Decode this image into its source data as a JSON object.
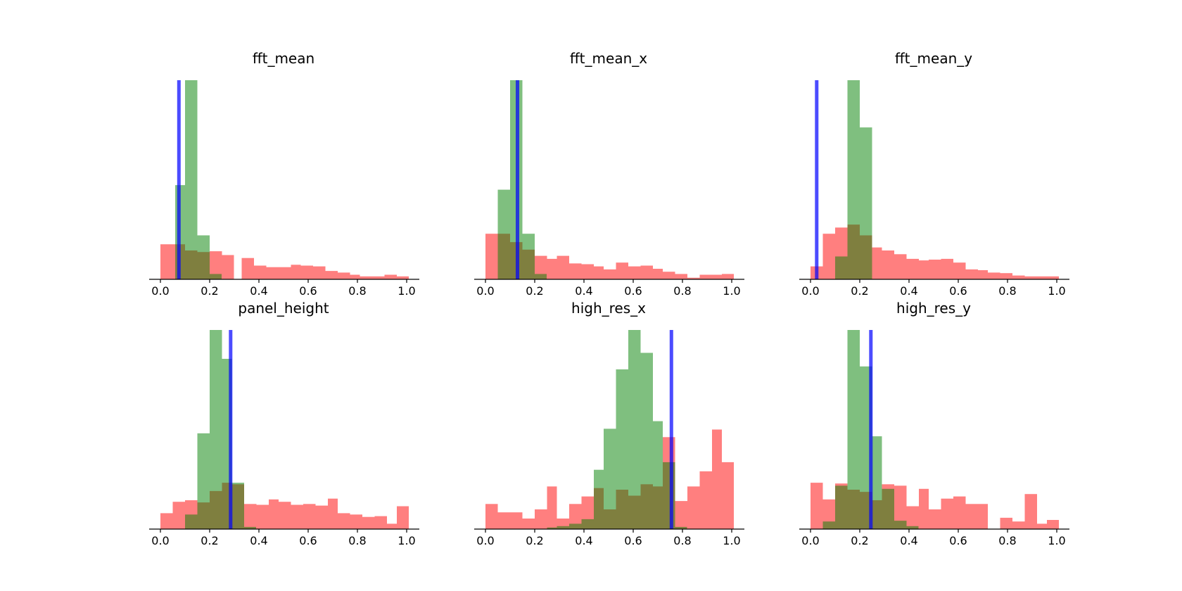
{
  "colors": {
    "red": "#ff0000",
    "green": "#008000",
    "blue": "#0000ff",
    "axis": "#000000"
  },
  "chart_data": [
    {
      "type": "bar",
      "title": "fft_mean",
      "xlim": [
        0,
        1
      ],
      "xticks": [
        "0.0",
        "0.2",
        "0.4",
        "0.6",
        "0.8",
        "1.0"
      ],
      "ylim": [
        0,
        100
      ],
      "show_yaxis": false,
      "series": [
        {
          "color": "red",
          "x": [
            0.0,
            0.06,
            0.1,
            0.15,
            0.2,
            0.25,
            0.33,
            0.38,
            0.43,
            0.48,
            0.53,
            0.57,
            0.62,
            0.67,
            0.72,
            0.77,
            0.81,
            0.86,
            0.91,
            0.96
          ],
          "values": [
            17.6,
            17.6,
            14.5,
            13.7,
            14.1,
            12.2,
            10.7,
            6.9,
            6.1,
            6.1,
            7.3,
            6.9,
            6.5,
            4.2,
            3.4,
            2.3,
            1.5,
            1.5,
            2.3,
            1.5
          ]
        },
        {
          "color": "green",
          "x": [
            0.0,
            0.06,
            0.1,
            0.15,
            0.2
          ],
          "values": [
            0,
            47.3,
            100,
            22.1,
            2.7
          ]
        }
      ],
      "vline": 0.075
    },
    {
      "type": "bar",
      "title": "fft_mean_x",
      "xlim": [
        0,
        1
      ],
      "xticks": [
        "0.0",
        "0.2",
        "0.4",
        "0.6",
        "0.8",
        "1.0"
      ],
      "ylim": [
        0,
        100
      ],
      "show_yaxis": false,
      "series": [
        {
          "color": "red",
          "x": [
            0.0,
            0.05,
            0.1,
            0.15,
            0.2,
            0.25,
            0.29,
            0.34,
            0.39,
            0.44,
            0.48,
            0.53,
            0.58,
            0.63,
            0.68,
            0.72,
            0.77,
            0.82,
            0.87,
            0.92,
            0.96
          ],
          "values": [
            22.9,
            22.9,
            18.7,
            14.9,
            11.8,
            10.3,
            11.8,
            8.0,
            7.6,
            6.5,
            5.0,
            8.4,
            6.5,
            6.9,
            5.3,
            3.8,
            2.7,
            0.8,
            2.3,
            2.3,
            2.7
          ]
        },
        {
          "color": "green",
          "x": [
            0.0,
            0.05,
            0.1,
            0.15,
            0.2
          ],
          "values": [
            0,
            45.0,
            100,
            22.9,
            2.7
          ]
        }
      ],
      "vline": 0.13
    },
    {
      "type": "bar",
      "title": "fft_mean_y",
      "xlim": [
        0,
        1
      ],
      "xticks": [
        "0.0",
        "0.2",
        "0.4",
        "0.6",
        "0.8",
        "1.0"
      ],
      "ylim": [
        0,
        100
      ],
      "show_yaxis": false,
      "series": [
        {
          "color": "red",
          "x": [
            0.0,
            0.05,
            0.1,
            0.15,
            0.2,
            0.25,
            0.29,
            0.34,
            0.39,
            0.44,
            0.48,
            0.53,
            0.58,
            0.63,
            0.68,
            0.72,
            0.77,
            0.82,
            0.87,
            0.92,
            0.96
          ],
          "values": [
            6.5,
            22.9,
            26.0,
            27.5,
            22.1,
            16.0,
            14.5,
            12.6,
            10.3,
            9.5,
            9.9,
            10.3,
            8.4,
            5.0,
            4.6,
            3.4,
            3.1,
            1.9,
            1.5,
            1.5,
            1.5
          ]
        },
        {
          "color": "green",
          "x": [
            0.05,
            0.1,
            0.15,
            0.2,
            0.25
          ],
          "values": [
            0,
            11.5,
            100,
            76.3,
            0
          ]
        }
      ],
      "vline": 0.025
    },
    {
      "type": "bar",
      "title": "panel_height",
      "xlim": [
        0,
        1
      ],
      "xticks": [
        "0.0",
        "0.2",
        "0.4",
        "0.6",
        "0.8",
        "1.0"
      ],
      "ylim": [
        0,
        100
      ],
      "show_yaxis": false,
      "series": [
        {
          "color": "red",
          "x": [
            0.0,
            0.05,
            0.1,
            0.15,
            0.2,
            0.25,
            0.29,
            0.34,
            0.39,
            0.44,
            0.48,
            0.53,
            0.58,
            0.63,
            0.68,
            0.72,
            0.77,
            0.82,
            0.87,
            0.92,
            0.96
          ],
          "values": [
            8.0,
            13.7,
            14.5,
            13.4,
            19.1,
            23.3,
            22.5,
            12.6,
            12.2,
            14.9,
            13.7,
            12.2,
            12.6,
            11.8,
            15.3,
            8.0,
            7.3,
            6.1,
            6.5,
            2.7,
            11.5
          ]
        },
        {
          "color": "green",
          "x": [
            0.1,
            0.15,
            0.2,
            0.25,
            0.29,
            0.34
          ],
          "values": [
            7.3,
            48.1,
            100,
            85.5,
            23.3,
            1.1
          ]
        }
      ],
      "vline": 0.285
    },
    {
      "type": "bar",
      "title": "high_res_x",
      "xlim": [
        0,
        1
      ],
      "xticks": [
        "0.0",
        "0.2",
        "0.4",
        "0.6",
        "0.8",
        "1.0"
      ],
      "ylim": [
        0,
        100
      ],
      "show_yaxis": false,
      "series": [
        {
          "color": "red",
          "x": [
            0.0,
            0.05,
            0.1,
            0.15,
            0.2,
            0.25,
            0.29,
            0.34,
            0.39,
            0.44,
            0.48,
            0.53,
            0.58,
            0.63,
            0.68,
            0.72,
            0.77,
            0.82,
            0.87,
            0.92,
            0.96
          ],
          "values": [
            12.6,
            8.4,
            8.4,
            5.3,
            9.9,
            21.4,
            5.3,
            12.6,
            16.4,
            20.6,
            9.9,
            19.8,
            16.8,
            22.5,
            21.4,
            46.2,
            14.1,
            21.4,
            29.0,
            50.0,
            33.6
          ]
        },
        {
          "color": "green",
          "x": [
            0.25,
            0.29,
            0.34,
            0.39,
            0.44,
            0.48,
            0.53,
            0.58,
            0.63,
            0.68,
            0.72,
            0.77
          ],
          "values": [
            0.8,
            1.5,
            2.7,
            5.0,
            29.8,
            50.4,
            80.2,
            100,
            88.5,
            54.2,
            33.6,
            1.1
          ]
        }
      ],
      "vline": 0.755
    },
    {
      "type": "bar",
      "title": "high_res_y",
      "xlim": [
        0,
        1
      ],
      "xticks": [
        "0.0",
        "0.2",
        "0.4",
        "0.6",
        "0.8",
        "1.0"
      ],
      "ylim": [
        0,
        100
      ],
      "show_yaxis": false,
      "series": [
        {
          "color": "red",
          "x": [
            0.0,
            0.05,
            0.1,
            0.15,
            0.2,
            0.25,
            0.29,
            0.34,
            0.39,
            0.44,
            0.48,
            0.53,
            0.58,
            0.63,
            0.68,
            0.72,
            0.77,
            0.82,
            0.87,
            0.92,
            0.96
          ],
          "values": [
            23.3,
            14.9,
            22.9,
            19.8,
            18.7,
            14.5,
            22.5,
            21.8,
            11.5,
            20.2,
            9.9,
            15.3,
            16.4,
            12.6,
            12.6,
            0,
            5.7,
            3.8,
            17.6,
            2.7,
            4.6
          ]
        },
        {
          "color": "green",
          "x": [
            0.05,
            0.1,
            0.15,
            0.2,
            0.25,
            0.29,
            0.34,
            0.39
          ],
          "values": [
            3.8,
            21.8,
            100,
            81.7,
            46.6,
            20.2,
            4.2,
            1.5
          ]
        }
      ],
      "vline": 0.245
    }
  ]
}
